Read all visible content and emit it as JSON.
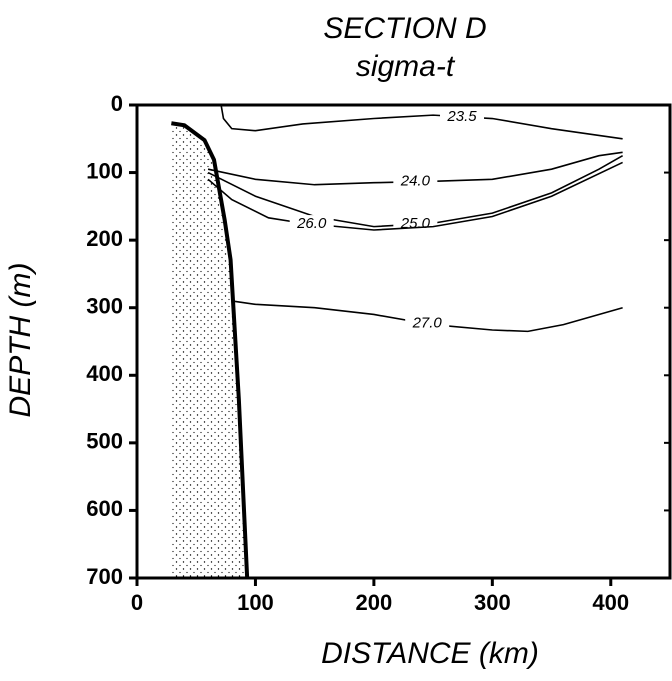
{
  "chart_data": {
    "type": "contour",
    "title": "SECTION   D",
    "subtitle": "sigma-t",
    "x_label": "DISTANCE (km)",
    "y_label": "DEPTH (m)",
    "xlim": [
      0,
      450
    ],
    "xticks": [
      0,
      100,
      200,
      300,
      400
    ],
    "ylim": [
      700,
      0
    ],
    "yticks": [
      0,
      100,
      200,
      300,
      400,
      500,
      600,
      700
    ],
    "color": "#000000",
    "series": [
      {
        "name": "23.5",
        "x": [
          71,
          73,
          80,
          100,
          140,
          200,
          250,
          300,
          350,
          410
        ],
        "values": [
          0,
          20,
          35,
          38,
          28,
          20,
          15,
          20,
          35,
          50
        ]
      },
      {
        "name": "24.0",
        "x": [
          60,
          100,
          150,
          200,
          250,
          300,
          350,
          390,
          410
        ],
        "values": [
          95,
          110,
          118,
          115,
          113,
          110,
          95,
          75,
          70
        ]
      },
      {
        "name": "25.0",
        "x": [
          60,
          100,
          150,
          200,
          250,
          300,
          350,
          390,
          410
        ],
        "values": [
          100,
          135,
          165,
          180,
          175,
          160,
          130,
          95,
          75
        ]
      },
      {
        "name": "26.0",
        "x": [
          60,
          80,
          111,
          140,
          200,
          250,
          300,
          350,
          410
        ],
        "values": [
          110,
          140,
          167,
          175,
          185,
          180,
          165,
          135,
          85
        ]
      },
      {
        "name": "27.0",
        "x": [
          80,
          100,
          150,
          200,
          249,
          300,
          330,
          360,
          410
        ],
        "values": [
          290,
          295,
          300,
          310,
          325,
          333,
          335,
          325,
          300
        ]
      }
    ],
    "terrain": {
      "x": [
        29,
        40,
        57,
        65,
        74,
        79,
        86,
        93
      ],
      "values": [
        27,
        30,
        52,
        81,
        170,
        229,
        436,
        700
      ]
    }
  }
}
